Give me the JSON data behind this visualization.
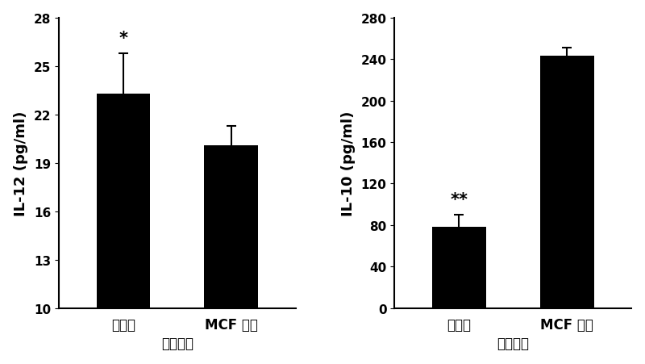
{
  "left_chart": {
    "ylabel": "IL-12（pg/ml）",
    "ylabel_plain": "IL-12 (pg/ml)",
    "x_labels": [
      "对照组",
      "MCF 细胞"
    ],
    "xlabel_below": "上清诱导",
    "values": [
      23.3,
      20.1
    ],
    "errors": [
      2.5,
      1.2
    ],
    "ylim": [
      10,
      28
    ],
    "yticks": [
      10,
      13,
      16,
      19,
      22,
      25,
      28
    ],
    "annotations": [
      "*",
      ""
    ],
    "bar_color": "#000000",
    "bar_width": 0.5
  },
  "right_chart": {
    "ylabel": "IL-10（pg/ml）",
    "ylabel_plain": "IL-10 (pg/ml)",
    "x_labels": [
      "对照组",
      "MCF 细胞"
    ],
    "xlabel_below": "上清诱导",
    "values": [
      78,
      243
    ],
    "errors": [
      12,
      8
    ],
    "ylim": [
      0,
      280
    ],
    "yticks": [
      0,
      40,
      80,
      120,
      160,
      200,
      240,
      280
    ],
    "annotations": [
      "**",
      ""
    ],
    "bar_color": "#000000",
    "bar_width": 0.5
  },
  "figure_bg": "#ffffff",
  "font_size_tick": 11,
  "font_size_label": 12,
  "font_size_annot": 14
}
